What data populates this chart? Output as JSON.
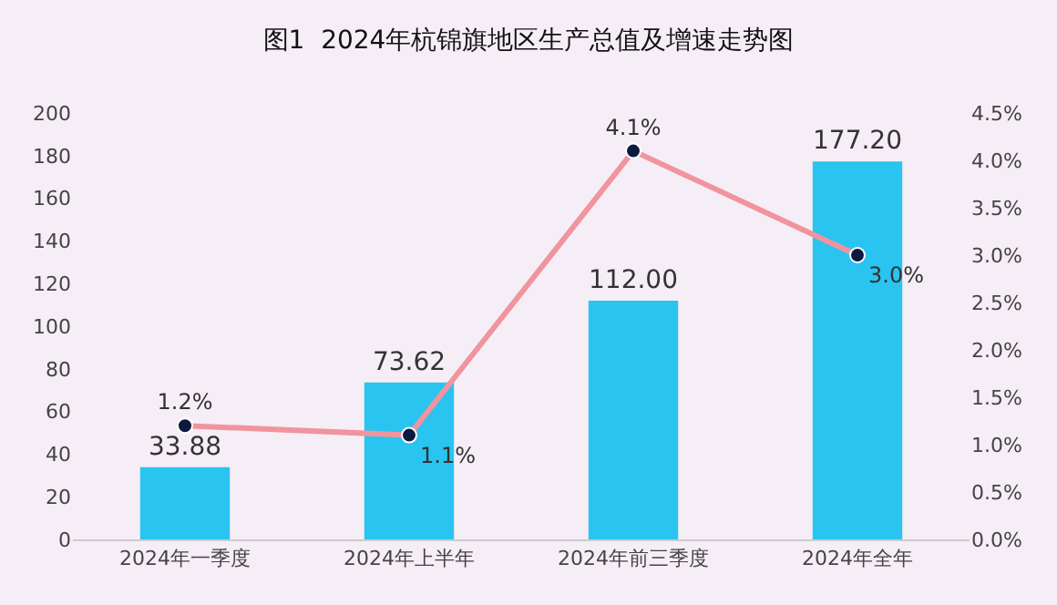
{
  "chart_data": {
    "type": "bar",
    "title": "图1  2024年杭锦旗地区生产总值及增速走势图",
    "categories": [
      "2024年一季度",
      "2024年上半年",
      "2024年前三季度",
      "2024年全年"
    ],
    "series": [
      {
        "color": "#29c4f0",
        "values": [
          33.88,
          73.62,
          112.0,
          177.2
        ],
        "value_labels": [
          "33.88",
          "73.62",
          "112.00",
          "177.20"
        ]
      },
      {
        "type": "line",
        "axis": "y2",
        "color": "#f0949e",
        "marker": "circle",
        "values": [
          1.2,
          1.1,
          4.1,
          3.0
        ],
        "value_labels": [
          "1.2%",
          "1.1%",
          "4.1%",
          "3.0%"
        ]
      }
    ],
    "ylim": [
      0,
      200
    ],
    "yticks": [
      0,
      20,
      40,
      60,
      80,
      100,
      120,
      140,
      160,
      180,
      200
    ],
    "y2lim": [
      0,
      4.5
    ],
    "y2ticks": [
      {
        "value": 0,
        "label": "0.0%"
      },
      {
        "value": 0.5,
        "label": "0.5%"
      },
      {
        "value": 1,
        "label": "1.0%"
      },
      {
        "value": 1.5,
        "label": "1.5%"
      },
      {
        "value": 2,
        "label": "2.0%"
      },
      {
        "value": 2.5,
        "label": "2.5%"
      },
      {
        "value": 3,
        "label": "3.0%"
      },
      {
        "value": 3.5,
        "label": "3.5%"
      },
      {
        "value": 4,
        "label": "4.0%"
      },
      {
        "value": 4.5,
        "label": "4.5%"
      }
    ],
    "relative": false
  }
}
